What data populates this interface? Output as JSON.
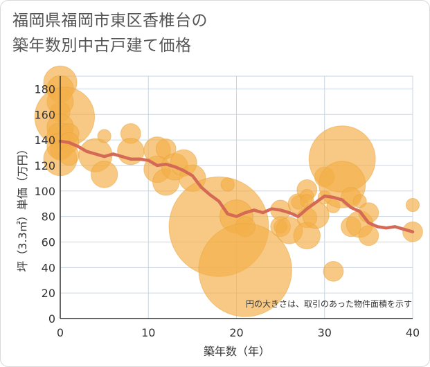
{
  "title_line1": "福岡県福岡市東区香椎台の",
  "title_line2": "築年数別中古戸建て価格",
  "chart_data": {
    "type": "scatter",
    "xlabel": "築年数（年）",
    "ylabel": "坪（3.3㎡）単価（万円）",
    "xlim": [
      0,
      40
    ],
    "ylim": [
      0,
      190
    ],
    "xticks": [
      0,
      10,
      20,
      30,
      40
    ],
    "yticks": [
      0,
      20,
      40,
      60,
      80,
      100,
      120,
      140,
      160,
      180
    ],
    "note": "円の大きさは、取引のあった物件面積を示す",
    "bubbles": [
      {
        "x": 0,
        "y": 185,
        "s": 5
      },
      {
        "x": 0,
        "y": 180,
        "s": 4
      },
      {
        "x": 0,
        "y": 170,
        "s": 4
      },
      {
        "x": 0,
        "y": 162,
        "s": 3
      },
      {
        "x": 0.5,
        "y": 158,
        "s": 9
      },
      {
        "x": 0,
        "y": 150,
        "s": 4
      },
      {
        "x": 0,
        "y": 143,
        "s": 4
      },
      {
        "x": 0,
        "y": 135,
        "s": 4
      },
      {
        "x": 0,
        "y": 132,
        "s": 3
      },
      {
        "x": 0,
        "y": 125,
        "s": 5
      },
      {
        "x": 1,
        "y": 145,
        "s": 3
      },
      {
        "x": 1,
        "y": 138,
        "s": 3
      },
      {
        "x": 1,
        "y": 128,
        "s": 3
      },
      {
        "x": 4,
        "y": 128,
        "s": 5
      },
      {
        "x": 5,
        "y": 143,
        "s": 2
      },
      {
        "x": 5,
        "y": 113,
        "s": 4
      },
      {
        "x": 8,
        "y": 145,
        "s": 3
      },
      {
        "x": 8,
        "y": 131,
        "s": 4
      },
      {
        "x": 11,
        "y": 132,
        "s": 4
      },
      {
        "x": 11,
        "y": 117,
        "s": 4
      },
      {
        "x": 12,
        "y": 133,
        "s": 3
      },
      {
        "x": 12,
        "y": 107,
        "s": 4
      },
      {
        "x": 13,
        "y": 119,
        "s": 4
      },
      {
        "x": 14,
        "y": 122,
        "s": 4
      },
      {
        "x": 15,
        "y": 110,
        "s": 4
      },
      {
        "x": 18,
        "y": 72,
        "s": 15
      },
      {
        "x": 20,
        "y": 80,
        "s": 5
      },
      {
        "x": 19,
        "y": 105,
        "s": 2
      },
      {
        "x": 21,
        "y": 72,
        "s": 3
      },
      {
        "x": 21,
        "y": 38,
        "s": 14
      },
      {
        "x": 25,
        "y": 85,
        "s": 3
      },
      {
        "x": 25,
        "y": 72,
        "s": 3
      },
      {
        "x": 25,
        "y": 72,
        "s": 2
      },
      {
        "x": 26,
        "y": 69,
        "s": 4
      },
      {
        "x": 27,
        "y": 90,
        "s": 3
      },
      {
        "x": 27,
        "y": 91,
        "s": 2
      },
      {
        "x": 28,
        "y": 101,
        "s": 3
      },
      {
        "x": 28,
        "y": 96,
        "s": 2
      },
      {
        "x": 28,
        "y": 92,
        "s": 2
      },
      {
        "x": 28,
        "y": 79,
        "s": 3
      },
      {
        "x": 28,
        "y": 65,
        "s": 4
      },
      {
        "x": 29,
        "y": 81,
        "s": 4
      },
      {
        "x": 30,
        "y": 111,
        "s": 3
      },
      {
        "x": 30,
        "y": 95,
        "s": 2
      },
      {
        "x": 31,
        "y": 88,
        "s": 2
      },
      {
        "x": 31,
        "y": 37,
        "s": 3
      },
      {
        "x": 32,
        "y": 125,
        "s": 10
      },
      {
        "x": 32,
        "y": 105,
        "s": 7
      },
      {
        "x": 33,
        "y": 95,
        "s": 3
      },
      {
        "x": 33,
        "y": 72,
        "s": 3
      },
      {
        "x": 34,
        "y": 92,
        "s": 2
      },
      {
        "x": 34,
        "y": 74,
        "s": 4
      },
      {
        "x": 35,
        "y": 83,
        "s": 3
      },
      {
        "x": 35,
        "y": 65,
        "s": 3
      },
      {
        "x": 40,
        "y": 89,
        "s": 2
      },
      {
        "x": 40,
        "y": 68,
        "s": 3
      }
    ],
    "trend": {
      "x": [
        0,
        1,
        2,
        3,
        4,
        5,
        6,
        7,
        8,
        9,
        10,
        11,
        12,
        13,
        14,
        15,
        16,
        17,
        18,
        19,
        20,
        21,
        22,
        23,
        24,
        25,
        26,
        27,
        28,
        29,
        30,
        31,
        32,
        33,
        34,
        35,
        36,
        37,
        38,
        39,
        40
      ],
      "y": [
        139,
        138,
        135,
        131,
        129,
        127,
        129,
        127,
        125,
        125,
        124,
        120,
        121,
        119,
        116,
        112,
        103,
        97,
        92,
        82,
        80,
        83,
        85,
        83,
        86,
        85,
        83,
        80,
        86,
        91,
        96,
        95,
        93,
        87,
        84,
        75,
        72,
        71,
        72,
        70,
        68
      ]
    }
  },
  "colors": {
    "bubble": "#f3b04a",
    "bubble_stroke": "#e8a33a",
    "trend": "#d46a55",
    "grid": "#c8d6e2",
    "axis": "#333333"
  }
}
